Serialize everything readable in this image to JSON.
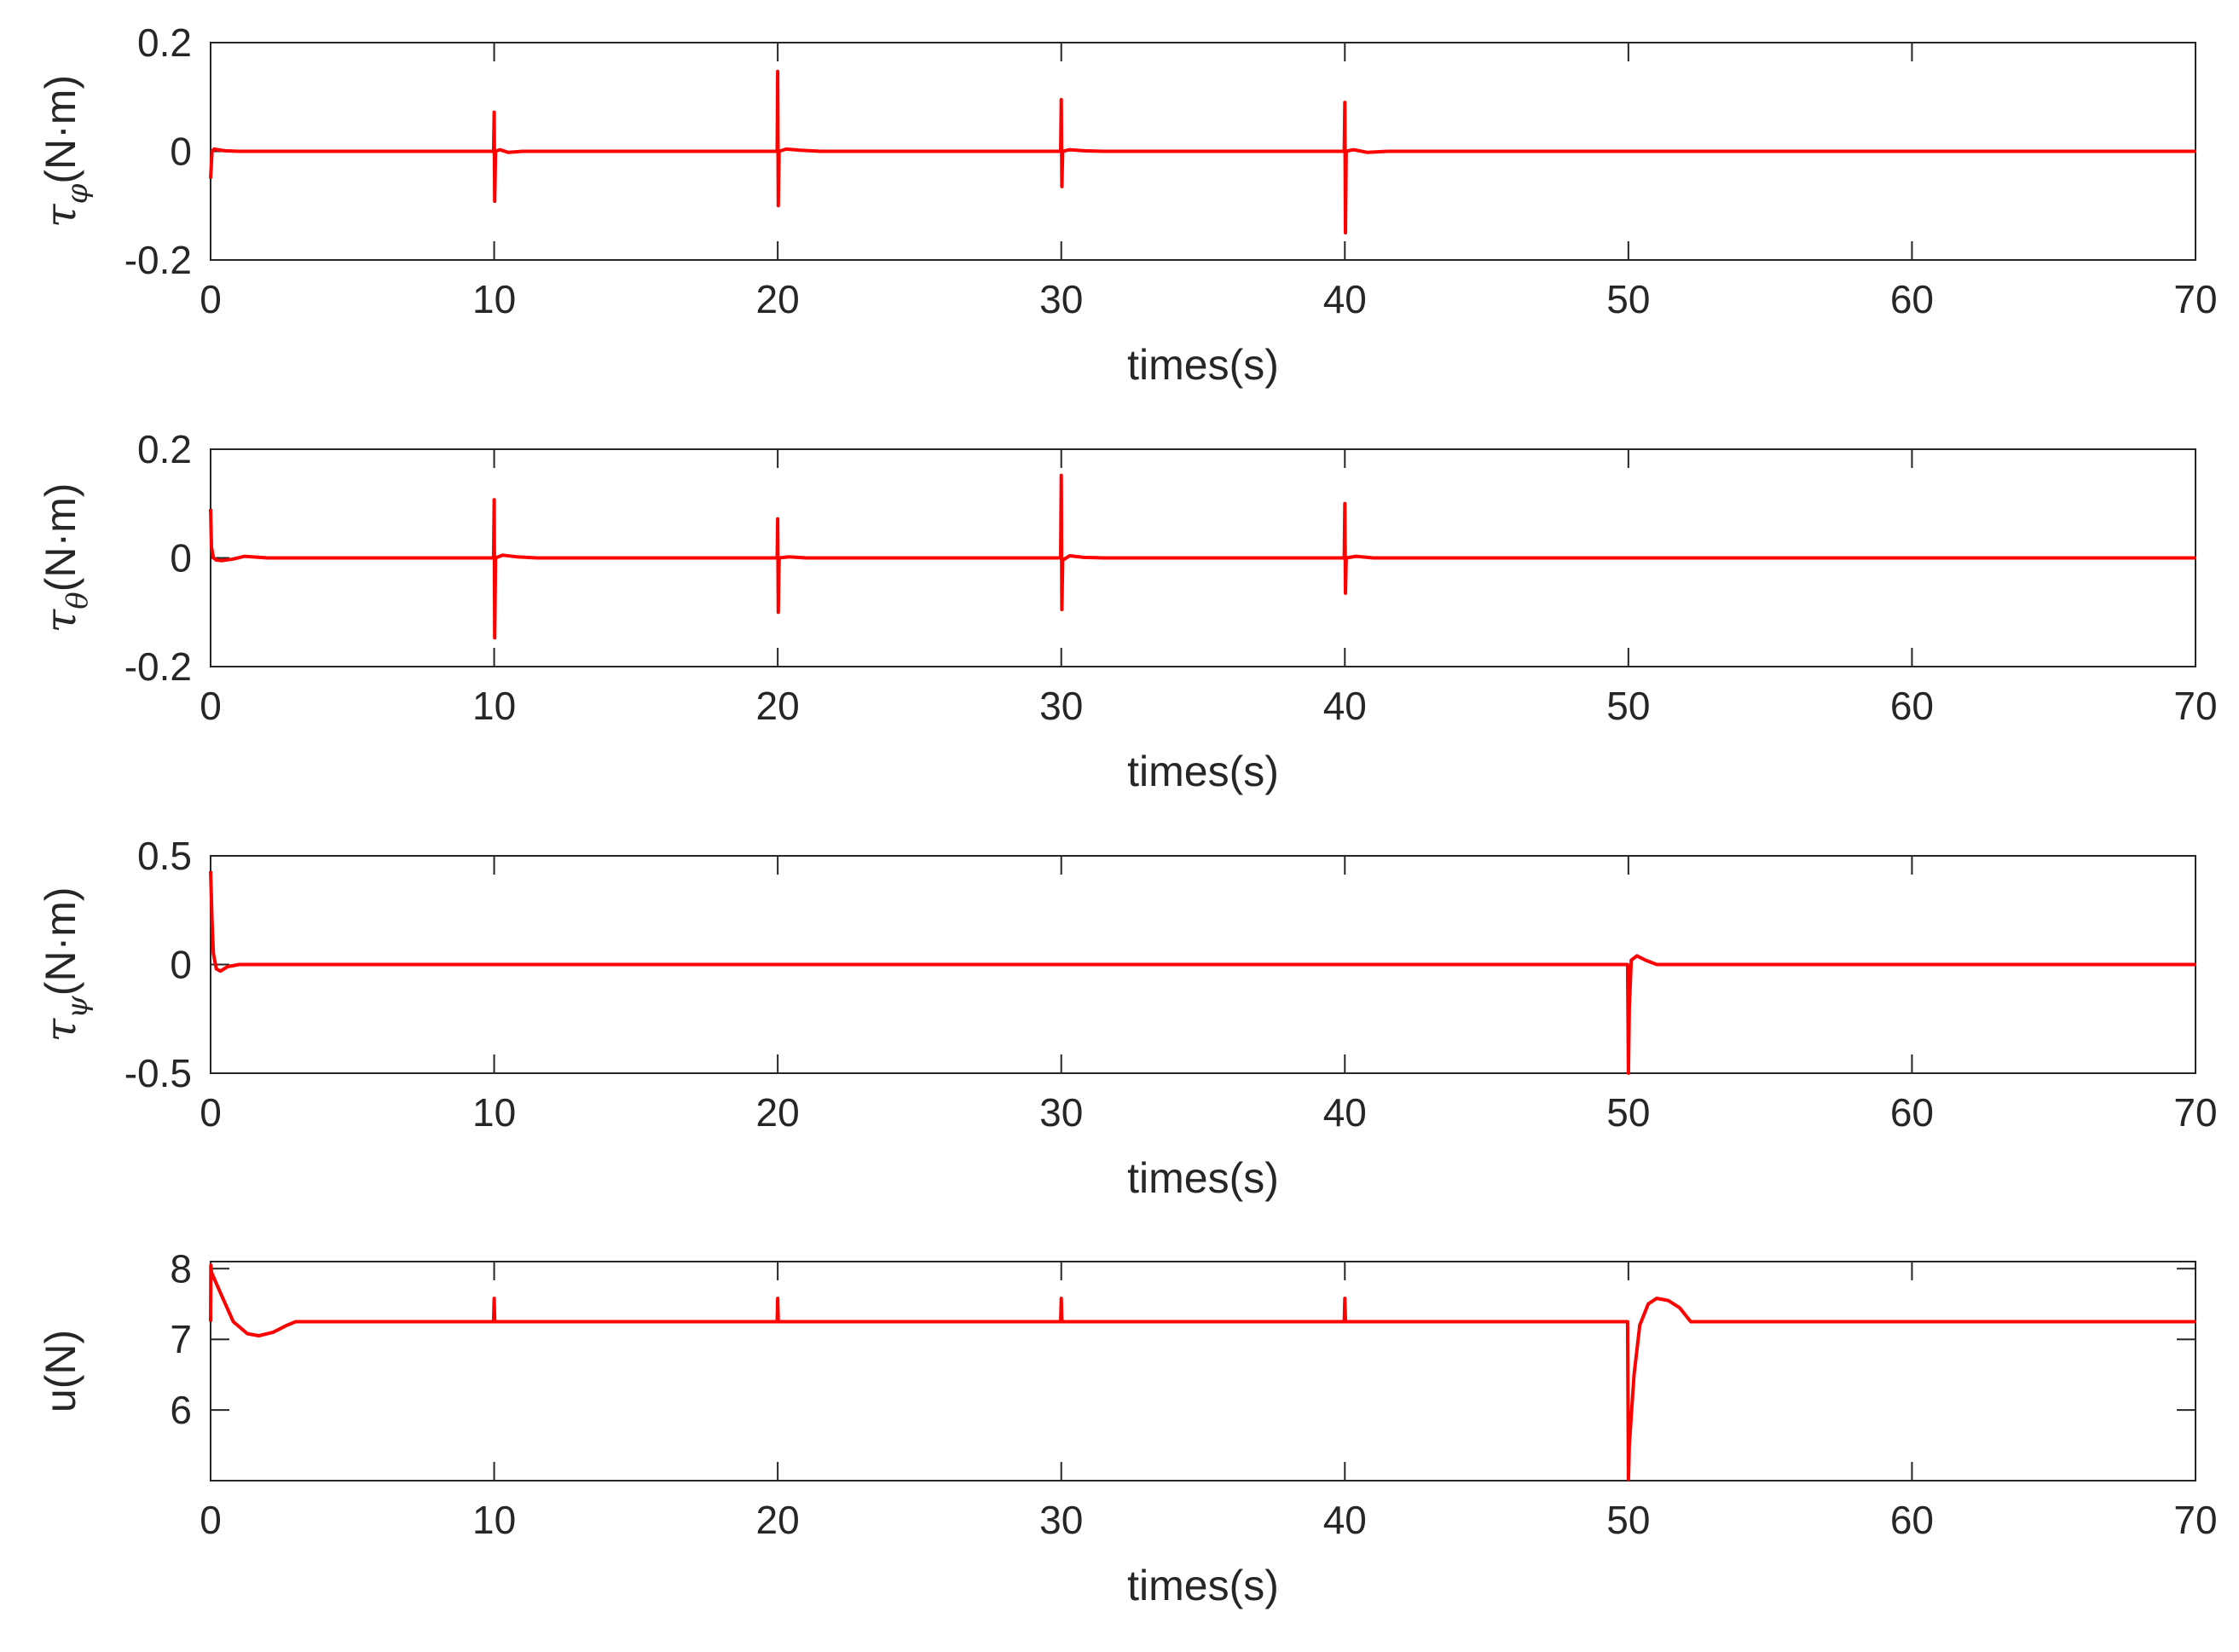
{
  "chart_data": [
    {
      "type": "line",
      "xlabel": "times(s)",
      "ylabel": {
        "symbol": "τ",
        "subscript": "φ",
        "unit": "(N·m)"
      },
      "xlim": [
        0,
        70
      ],
      "ylim": [
        -0.2,
        0.2
      ],
      "xticks": [
        "0",
        "10",
        "20",
        "30",
        "40",
        "50",
        "60",
        "70"
      ],
      "yticks": [
        "0.2",
        "0",
        "-0.2"
      ],
      "grid": false,
      "color": "#ff0000",
      "x": [
        0,
        0.05,
        0.12,
        0.25,
        0.5,
        1,
        2,
        3,
        9.98,
        10,
        10.02,
        10.05,
        10.2,
        10.5,
        11,
        19.98,
        20,
        20.02,
        20.05,
        20.3,
        20.8,
        21.5,
        22.5,
        29.98,
        30,
        30.02,
        30.05,
        30.3,
        30.8,
        31.5,
        39.98,
        40,
        40.02,
        40.05,
        40.3,
        40.8,
        41.5,
        42,
        50,
        60,
        70
      ],
      "values": [
        -0.05,
        0.0,
        0.004,
        0.003,
        0.001,
        0.0,
        0.0,
        0.0,
        0.0,
        0.072,
        -0.092,
        0.0,
        0.003,
        -0.002,
        0.0,
        0.0,
        0.147,
        -0.1,
        0.0,
        0.004,
        0.002,
        0.0,
        0.0,
        0.0,
        0.095,
        -0.065,
        0.0,
        0.003,
        0.001,
        0.0,
        0.0,
        0.09,
        -0.15,
        0.0,
        0.003,
        -0.002,
        0.0,
        0.0,
        0.0,
        0.0,
        0.0
      ]
    },
    {
      "type": "line",
      "xlabel": "times(s)",
      "ylabel": {
        "symbol": "τ",
        "subscript": "θ",
        "unit": "(N·m)"
      },
      "xlim": [
        0,
        70
      ],
      "ylim": [
        -0.2,
        0.2
      ],
      "xticks": [
        "0",
        "10",
        "20",
        "30",
        "40",
        "50",
        "60",
        "70"
      ],
      "yticks": [
        "0.2",
        "0",
        "-0.2"
      ],
      "grid": false,
      "color": "#ff0000",
      "x": [
        0,
        0.03,
        0.1,
        0.2,
        0.4,
        0.8,
        1.2,
        2,
        3,
        9.98,
        10,
        10.02,
        10.05,
        10.3,
        10.8,
        11.5,
        19.98,
        20,
        20.02,
        20.05,
        20.4,
        21,
        29.98,
        30,
        30.02,
        30.05,
        30.3,
        30.8,
        31.5,
        39.98,
        40,
        40.02,
        40.05,
        40.4,
        41,
        42,
        50,
        60,
        70
      ],
      "values": [
        0.09,
        0.02,
        0.0,
        -0.004,
        -0.005,
        -0.002,
        0.003,
        0.0,
        0.0,
        0.0,
        0.107,
        -0.147,
        0.0,
        0.005,
        0.002,
        0.0,
        0.0,
        0.072,
        -0.1,
        0.0,
        0.002,
        0.0,
        0.0,
        0.152,
        -0.095,
        -0.004,
        0.004,
        0.001,
        0.0,
        0.0,
        0.1,
        -0.065,
        0.0,
        0.003,
        0.0,
        0.0,
        0.0,
        0.0,
        0.0
      ]
    },
    {
      "type": "line",
      "xlabel": "times(s)",
      "ylabel": {
        "symbol": "τ",
        "subscript": "ψ",
        "unit": "(N·m)"
      },
      "xlim": [
        0,
        70
      ],
      "ylim": [
        -0.5,
        0.5
      ],
      "xticks": [
        "0",
        "10",
        "20",
        "30",
        "40",
        "50",
        "60",
        "70"
      ],
      "yticks": [
        "0.5",
        "0",
        "-0.5"
      ],
      "grid": false,
      "color": "#ff0000",
      "x": [
        0,
        0.05,
        0.1,
        0.2,
        0.35,
        0.6,
        1,
        2,
        49.97,
        50,
        50.03,
        50.1,
        50.3,
        50.6,
        51,
        52,
        60,
        70
      ],
      "values": [
        0.43,
        0.2,
        0.05,
        -0.02,
        -0.03,
        -0.01,
        0.0,
        0.0,
        0.0,
        -0.5,
        -0.2,
        0.02,
        0.04,
        0.02,
        0.0,
        0.0,
        0.0,
        0.0
      ]
    },
    {
      "type": "line",
      "xlabel": "times(s)",
      "ylabel": {
        "text": "u(N)"
      },
      "xlim": [
        0,
        70
      ],
      "ylim": [
        5,
        8.1
      ],
      "xticks": [
        "0",
        "10",
        "20",
        "30",
        "40",
        "50",
        "60",
        "70"
      ],
      "yticks": [
        "8",
        "7",
        "6"
      ],
      "grid": false,
      "color": "#ff0000",
      "x": [
        0,
        0.01,
        0.03,
        0.3,
        0.8,
        1.3,
        1.7,
        2.2,
        2.7,
        3,
        9.98,
        10,
        10.02,
        10.05,
        19.98,
        20,
        20.02,
        20.05,
        29.98,
        30,
        30.02,
        30.05,
        39.98,
        40,
        40.02,
        40.05,
        49.97,
        50,
        50.03,
        50.2,
        50.4,
        50.7,
        51,
        51.4,
        51.8,
        52.2,
        53,
        60,
        70
      ],
      "values": [
        7.25,
        8.05,
        7.95,
        7.7,
        7.25,
        7.08,
        7.05,
        7.1,
        7.2,
        7.25,
        7.25,
        7.58,
        7.25,
        7.25,
        7.25,
        7.58,
        7.25,
        7.25,
        7.25,
        7.58,
        7.25,
        7.25,
        7.25,
        7.58,
        7.25,
        7.25,
        7.25,
        5.02,
        5.5,
        6.5,
        7.2,
        7.5,
        7.58,
        7.55,
        7.45,
        7.25,
        7.25,
        7.25,
        7.25
      ]
    }
  ]
}
